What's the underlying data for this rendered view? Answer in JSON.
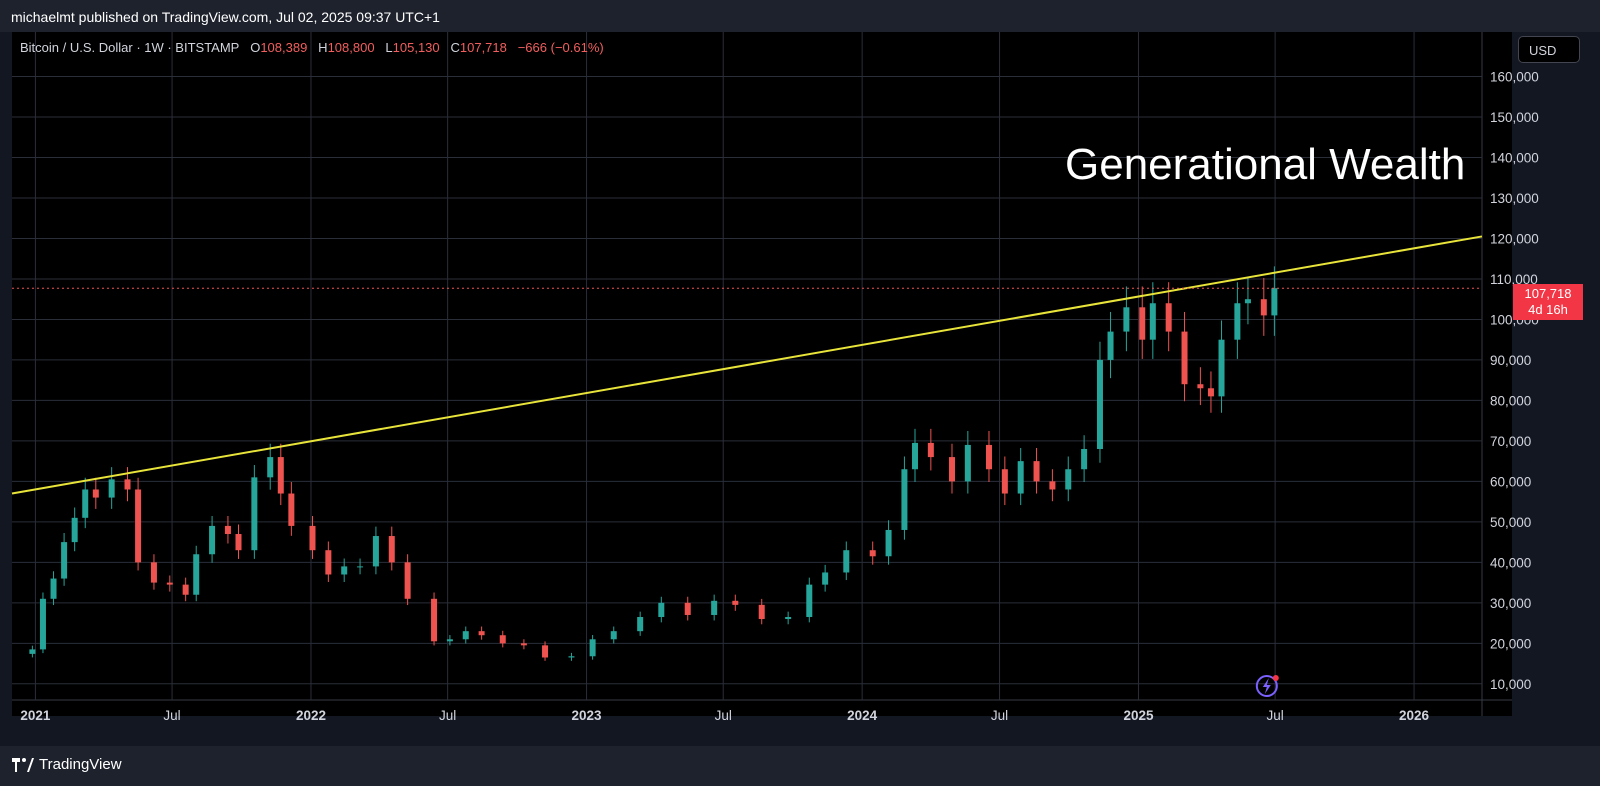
{
  "header": {
    "published_text": "michaelmt published on TradingView.com, Jul 02, 2025 09:37 UTC+1"
  },
  "legend": {
    "symbol": "Bitcoin / U.S. Dollar · 1W · BITSTAMP",
    "o_label": "O",
    "o_value": "108,389",
    "h_label": "H",
    "h_value": "108,800",
    "l_label": "L",
    "l_value": "105,130",
    "c_label": "C",
    "c_value": "107,718",
    "change": "−666 (−0.61%)"
  },
  "currency_button": "USD",
  "annotation": "Generational Wealth",
  "price_tag": {
    "price": "107,718",
    "countdown": "4d 16h"
  },
  "footer": {
    "brand": "TradingView"
  },
  "colors": {
    "up": "#26a69a",
    "down": "#ef5350",
    "trendline": "#e8e43a",
    "background": "#000000",
    "price_tag": "#f23645"
  },
  "chart_data": {
    "type": "candlestick",
    "title": "",
    "xlabel": "",
    "ylabel": "",
    "x_ticks": [
      "2021",
      "Jul",
      "2022",
      "Jul",
      "2023",
      "Jul",
      "2024",
      "Jul",
      "2025",
      "Jul",
      "2026"
    ],
    "y_ticks": [
      "10,000",
      "20,000",
      "30,000",
      "40,000",
      "50,000",
      "60,000",
      "70,000",
      "80,000",
      "90,000",
      "100,000",
      "110,000",
      "120,000",
      "130,000",
      "140,000",
      "150,000",
      "160,000"
    ],
    "ylim": [
      6000,
      171000
    ],
    "xlim": [
      "2020-12-01",
      "2026-04-01"
    ],
    "grid": true,
    "scale": "linear",
    "last_price": 107718,
    "trendline": {
      "label": "",
      "points": [
        [
          "2020-12-01",
          57000
        ],
        [
          "2026-04-01",
          120500
        ]
      ]
    },
    "series": [
      {
        "name": "",
        "values": [
          {
            "date": "2020-12-28",
            "close": 18500
          },
          {
            "date": "2021-01-11",
            "close": 31000
          },
          {
            "date": "2021-01-25",
            "close": 36000
          },
          {
            "date": "2021-02-08",
            "close": 45000
          },
          {
            "date": "2021-02-22",
            "close": 51000
          },
          {
            "date": "2021-03-08",
            "close": 58000
          },
          {
            "date": "2021-03-22",
            "close": 56000
          },
          {
            "date": "2021-04-12",
            "close": 60500
          },
          {
            "date": "2021-05-03",
            "close": 58000
          },
          {
            "date": "2021-05-17",
            "close": 40000
          },
          {
            "date": "2021-06-07",
            "close": 35000
          },
          {
            "date": "2021-06-28",
            "close": 34500
          },
          {
            "date": "2021-07-19",
            "close": 32000
          },
          {
            "date": "2021-08-02",
            "close": 42000
          },
          {
            "date": "2021-08-23",
            "close": 49000
          },
          {
            "date": "2021-09-13",
            "close": 47000
          },
          {
            "date": "2021-09-27",
            "close": 43000
          },
          {
            "date": "2021-10-18",
            "close": 61000
          },
          {
            "date": "2021-11-08",
            "close": 66000
          },
          {
            "date": "2021-11-22",
            "close": 57000
          },
          {
            "date": "2021-12-06",
            "close": 49000
          },
          {
            "date": "2022-01-03",
            "close": 43000
          },
          {
            "date": "2022-01-24",
            "close": 37000
          },
          {
            "date": "2022-02-14",
            "close": 39000
          },
          {
            "date": "2022-03-07",
            "close": 39000
          },
          {
            "date": "2022-03-28",
            "close": 46500
          },
          {
            "date": "2022-04-18",
            "close": 40000
          },
          {
            "date": "2022-05-09",
            "close": 31000
          },
          {
            "date": "2022-06-13",
            "close": 20500
          },
          {
            "date": "2022-07-04",
            "close": 21000
          },
          {
            "date": "2022-07-25",
            "close": 23000
          },
          {
            "date": "2022-08-15",
            "close": 22000
          },
          {
            "date": "2022-09-12",
            "close": 20000
          },
          {
            "date": "2022-10-10",
            "close": 19500
          },
          {
            "date": "2022-11-07",
            "close": 16500
          },
          {
            "date": "2022-12-12",
            "close": 16800
          },
          {
            "date": "2023-01-09",
            "close": 21000
          },
          {
            "date": "2023-02-06",
            "close": 23000
          },
          {
            "date": "2023-03-13",
            "close": 26500
          },
          {
            "date": "2023-04-10",
            "close": 30000
          },
          {
            "date": "2023-05-15",
            "close": 27000
          },
          {
            "date": "2023-06-19",
            "close": 30500
          },
          {
            "date": "2023-07-17",
            "close": 29500
          },
          {
            "date": "2023-08-21",
            "close": 26000
          },
          {
            "date": "2023-09-25",
            "close": 26500
          },
          {
            "date": "2023-10-23",
            "close": 34500
          },
          {
            "date": "2023-11-13",
            "close": 37500
          },
          {
            "date": "2023-12-11",
            "close": 43000
          },
          {
            "date": "2024-01-15",
            "close": 41500
          },
          {
            "date": "2024-02-05",
            "close": 48000
          },
          {
            "date": "2024-02-26",
            "close": 63000
          },
          {
            "date": "2024-03-11",
            "close": 69500
          },
          {
            "date": "2024-04-01",
            "close": 66000
          },
          {
            "date": "2024-04-29",
            "close": 60000
          },
          {
            "date": "2024-05-20",
            "close": 69000
          },
          {
            "date": "2024-06-17",
            "close": 63000
          },
          {
            "date": "2024-07-08",
            "close": 57000
          },
          {
            "date": "2024-07-29",
            "close": 65000
          },
          {
            "date": "2024-08-19",
            "close": 60000
          },
          {
            "date": "2024-09-09",
            "close": 58000
          },
          {
            "date": "2024-09-30",
            "close": 63000
          },
          {
            "date": "2024-10-21",
            "close": 68000
          },
          {
            "date": "2024-11-11",
            "close": 90000
          },
          {
            "date": "2024-11-25",
            "close": 97000
          },
          {
            "date": "2024-12-16",
            "close": 103000
          },
          {
            "date": "2025-01-06",
            "close": 95000
          },
          {
            "date": "2025-01-20",
            "close": 104000
          },
          {
            "date": "2025-02-10",
            "close": 97000
          },
          {
            "date": "2025-03-03",
            "close": 84000
          },
          {
            "date": "2025-03-24",
            "close": 83000
          },
          {
            "date": "2025-04-07",
            "close": 81000
          },
          {
            "date": "2025-04-21",
            "close": 95000
          },
          {
            "date": "2025-05-12",
            "close": 104000
          },
          {
            "date": "2025-05-26",
            "close": 105000
          },
          {
            "date": "2025-06-16",
            "close": 101000
          },
          {
            "date": "2025-06-30",
            "close": 107718
          }
        ]
      }
    ]
  }
}
